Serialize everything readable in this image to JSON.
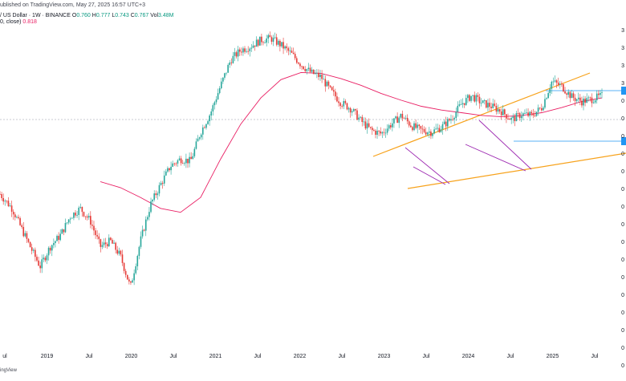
{
  "header": {
    "published": "ublished on TradingView.com, May 27, 2025 16:57 UTC+3",
    "symbol": "/ US Dollar · 1W · BINANCE",
    "o_label": "O",
    "o_val": "0.760",
    "h_label": "H",
    "h_val": "0.777",
    "l_label": "L",
    "l_val": "0.743",
    "c_label": "C",
    "c_val": "0.767",
    "vol_label": "Vol",
    "vol_val": "3.48M",
    "ma_label": "0, close)",
    "ma_val": "0.818"
  },
  "footer": {
    "brand": "ingView"
  },
  "colors": {
    "up": "#26a69a",
    "up_body": "#2196f3",
    "down": "#e53935",
    "ma": "#e91e63",
    "channel": "#f7a21b",
    "wedge": "#9c27b0",
    "level_line": "#2196f3",
    "axis_text": "#131722",
    "dotted": "#787b86"
  },
  "chart_data": {
    "type": "candlestick",
    "title": "",
    "x_ticks": [
      "ul",
      "2019",
      "Jul",
      "2020",
      "Jul",
      "2021",
      "Jul",
      "2022",
      "Jul",
      "2023",
      "Jul",
      "2024",
      "Jul",
      "2025",
      "Jul"
    ],
    "y_ticks_visible": [
      "3",
      "3",
      "3",
      "3",
      "0",
      "0",
      "0",
      "0",
      "0",
      "0",
      "0",
      "0",
      "0",
      "0",
      "0",
      "0",
      "0",
      "0",
      "0",
      "0",
      "0"
    ],
    "last_close": 0.767,
    "moving_average_last": 0.818,
    "series_path": [
      [
        0.0,
        0.54
      ],
      [
        0.6,
        0.46
      ],
      [
        1.0,
        0.38
      ],
      [
        1.5,
        0.3
      ],
      [
        2.0,
        0.24
      ],
      [
        2.5,
        0.3
      ],
      [
        3.0,
        0.34
      ],
      [
        3.5,
        0.42
      ],
      [
        4.0,
        0.46
      ],
      [
        4.5,
        0.4
      ],
      [
        5.0,
        0.3
      ],
      [
        5.5,
        0.32
      ],
      [
        6.0,
        0.27
      ],
      [
        6.5,
        0.19
      ],
      [
        7.0,
        0.32
      ],
      [
        7.5,
        0.48
      ],
      [
        8.0,
        0.6
      ],
      [
        8.5,
        0.74
      ],
      [
        9.0,
        0.8
      ],
      [
        9.5,
        0.78
      ],
      [
        10.0,
        1.08
      ],
      [
        10.5,
        1.34
      ],
      [
        11.0,
        1.82
      ],
      [
        11.5,
        2.42
      ],
      [
        12.0,
        2.7
      ],
      [
        12.5,
        2.82
      ],
      [
        13.0,
        3.02
      ],
      [
        13.5,
        3.08
      ],
      [
        14.0,
        2.86
      ],
      [
        14.5,
        2.6
      ],
      [
        15.0,
        2.3
      ],
      [
        15.5,
        2.1
      ],
      [
        16.0,
        2.0
      ],
      [
        16.5,
        1.7
      ],
      [
        17.0,
        1.5
      ],
      [
        17.5,
        1.4
      ],
      [
        18.0,
        1.22
      ],
      [
        18.5,
        1.1
      ],
      [
        19.0,
        1.06
      ],
      [
        19.5,
        1.18
      ],
      [
        20.0,
        1.3
      ],
      [
        20.5,
        1.16
      ],
      [
        21.0,
        1.1
      ],
      [
        21.5,
        1.08
      ],
      [
        22.0,
        1.14
      ],
      [
        22.5,
        1.26
      ],
      [
        23.0,
        1.48
      ],
      [
        23.5,
        1.62
      ],
      [
        24.0,
        1.5
      ],
      [
        24.5,
        1.44
      ],
      [
        25.0,
        1.36
      ],
      [
        25.5,
        1.24
      ],
      [
        26.0,
        1.32
      ],
      [
        26.5,
        1.3
      ],
      [
        27.0,
        1.42
      ],
      [
        27.5,
        1.9
      ],
      [
        28.0,
        1.8
      ],
      [
        28.5,
        1.6
      ],
      [
        29.0,
        1.52
      ],
      [
        29.5,
        1.56
      ],
      [
        30.0,
        1.62
      ]
    ],
    "moving_average_path": [
      [
        5.0,
        0.62
      ],
      [
        6.0,
        0.58
      ],
      [
        7.0,
        0.52
      ],
      [
        8.0,
        0.46
      ],
      [
        9.0,
        0.44
      ],
      [
        10.0,
        0.52
      ],
      [
        11.0,
        0.8
      ],
      [
        12.0,
        1.18
      ],
      [
        13.0,
        1.58
      ],
      [
        14.0,
        1.94
      ],
      [
        15.0,
        2.1
      ],
      [
        16.0,
        2.08
      ],
      [
        17.0,
        1.96
      ],
      [
        18.0,
        1.82
      ],
      [
        19.0,
        1.66
      ],
      [
        20.0,
        1.54
      ],
      [
        21.0,
        1.44
      ],
      [
        22.0,
        1.38
      ],
      [
        23.0,
        1.34
      ],
      [
        24.0,
        1.3
      ],
      [
        25.0,
        1.28
      ],
      [
        26.0,
        1.3
      ],
      [
        27.0,
        1.34
      ],
      [
        28.0,
        1.42
      ],
      [
        29.0,
        1.52
      ],
      [
        30.0,
        1.58
      ]
    ]
  }
}
